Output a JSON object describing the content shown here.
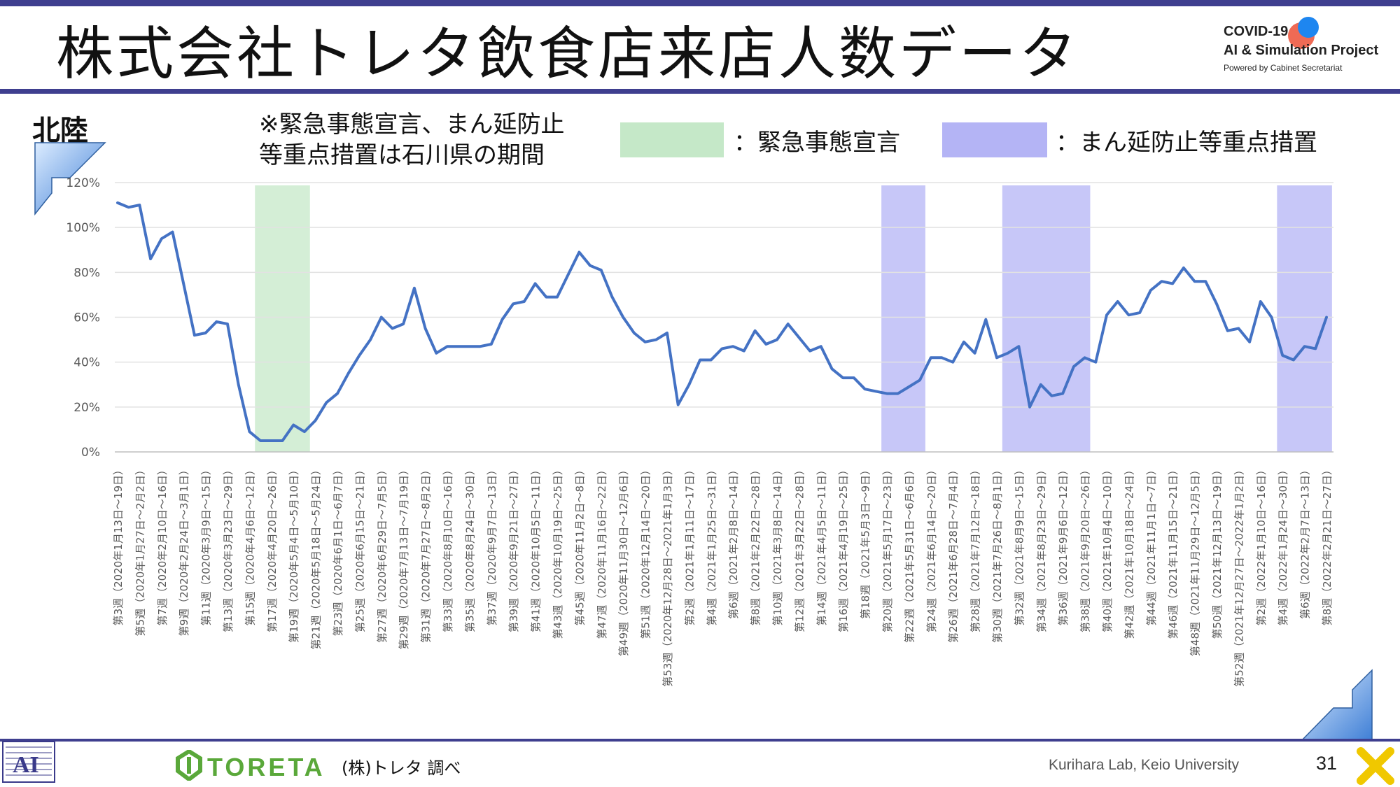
{
  "header": {
    "title": "株式会社トレタ飲食店来店人数データ",
    "project_line1": "COVID-19",
    "project_line2": "AI & Simulation Project",
    "project_line3": "Powered by Cabinet Secretariat"
  },
  "region": "北陸",
  "note_line1": "※緊急事態宣言、まん延防止",
  "note_line2": "等重点措置は石川県の期間",
  "legend": {
    "emergency_label": "：緊急事態宣言",
    "manbou_label": "：まん延防止等重点措置",
    "emergency_color": "#c5e8c8",
    "manbou_color": "#b4b4f5"
  },
  "footer": {
    "logo_text": "TORETA",
    "source": "(株)トレタ 調べ",
    "lab": "Kurihara Lab, Keio University",
    "page_number": "31"
  },
  "colors": {
    "line": "#4472c4",
    "accent_bar": "#3f3f8f"
  },
  "chart_data": {
    "type": "line",
    "y_ticks": [
      "0%",
      "20%",
      "40%",
      "60%",
      "80%",
      "100%",
      "120%"
    ],
    "ylim": [
      0,
      120
    ],
    "grid": true,
    "x_labels": [
      "第3週（2020年1月13日～19日）",
      "第5週（2020年1月27日～2月2日）",
      "第7週（2020年2月10日～16日）",
      "第9週（2020年2月24日～3月1日）",
      "第11週（2020年3月9日～15日）",
      "第13週（2020年3月23日～29日）",
      "第15週（2020年4月6日～12日）",
      "第17週（2020年4月20日～26日）",
      "第19週（2020年5月4日～5月10日）",
      "第21週（2020年5月18日～5月24日）",
      "第23週（2020年6月1日～6月7日）",
      "第25週（2020年6月15日～21日）",
      "第27週（2020年6月29日～7月5日）",
      "第29週（2020年7月13日～7月19日）",
      "第31週（2020年7月27日～8月2日）",
      "第33週（2020年8月10日～16日）",
      "第35週（2020年8月24日～30日）",
      "第37週（2020年9月7日～13日）",
      "第39週（2020年9月21日～27日）",
      "第41週（2020年10月5日～11日）",
      "第43週（2020年10月19日～25日）",
      "第45週（2020年11月2日～8日）",
      "第47週（2020年11月16日～22日）",
      "第49週（2020年11月30日～12月6日）",
      "第51週（2020年12月14日～20日）",
      "第53週（2020年12月28日～2021年1月3日）",
      "第2週（2021年1月11日～17日）",
      "第4週（2021年1月25日～31日）",
      "第6週（2021年2月8日～14日）",
      "第8週（2021年2月22日～28日）",
      "第10週（2021年3月8日～14日）",
      "第12週（2021年3月22日～28日）",
      "第14週（2021年4月5日～11日）",
      "第16週（2021年4月19日～25日）",
      "第18週（2021年5月3日～9日）",
      "第20週（2021年5月17日～23日）",
      "第22週（2021年5月31日～6月6日）",
      "第24週（2021年6月14日～20日）",
      "第26週（2021年6月28日～7月4日）",
      "第28週（2021年7月12日～18日）",
      "第30週（2021年7月26日～8月1日）",
      "第32週（2021年8月9日～15日）",
      "第34週（2021年8月23日～29日）",
      "第36週（2021年9月6日～12日）",
      "第38週（2021年9月20日～26日）",
      "第40週（2021年10月4日～10日）",
      "第42週（2021年10月18日～24日）",
      "第44週（2021年11月1日～7日）",
      "第46週（2021年11月15日～21日）",
      "第48週（2021年11月29日～12月5日）",
      "第50週（2021年12月13日～19日）",
      "第52週（2021年12月27日～2022年1月2日）",
      "第2週（2022年1月10日～16日）",
      "第4週（2022年1月24日～30日）",
      "第6週（2022年2月7日～13日）",
      "第8週（2022年2月21日～27日）"
    ],
    "values": [
      111,
      109,
      110,
      86,
      95,
      98,
      75,
      52,
      53,
      58,
      57,
      30,
      9,
      5,
      5,
      5,
      12,
      9,
      14,
      22,
      26,
      35,
      43,
      50,
      60,
      55,
      57,
      73,
      55,
      44,
      47,
      47,
      47,
      47,
      48,
      59,
      66,
      67,
      75,
      69,
      69,
      79,
      89,
      83,
      81,
      69,
      60,
      53,
      49,
      50,
      53,
      21,
      30,
      41,
      41,
      46,
      47,
      45,
      54,
      48,
      50,
      57,
      51,
      45,
      47,
      37,
      33,
      33,
      28,
      27,
      26,
      26,
      29,
      32,
      42,
      42,
      40,
      49,
      44,
      59,
      42,
      44,
      47,
      20,
      30,
      25,
      26,
      38,
      42,
      40,
      61,
      67,
      61,
      62,
      72,
      76,
      75,
      82,
      76,
      76,
      66,
      54,
      55,
      49,
      67,
      60,
      43,
      41,
      47,
      46,
      60
    ],
    "emergency_periods": [
      [
        13,
        17
      ]
    ],
    "manbou_periods": [
      [
        70,
        73
      ],
      [
        81,
        88
      ],
      [
        106,
        110
      ]
    ]
  }
}
